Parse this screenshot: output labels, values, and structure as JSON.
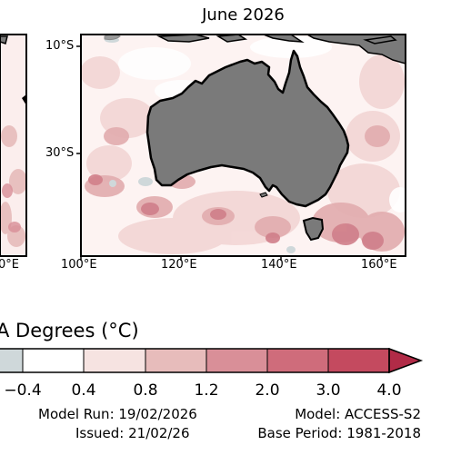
{
  "panel": {
    "title": "June 2026",
    "lat_labels": [
      "10°S",
      "30°S"
    ],
    "lon_labels": [
      "100°E",
      "120°E",
      "140°E",
      "160°E"
    ],
    "left_panel_partial_lon_label": "0°E"
  },
  "colorbar": {
    "title": "A Degrees (°C)",
    "tick_labels": [
      "−0.4",
      "0.4",
      "0.8",
      "1.2",
      "2.0",
      "3.0",
      "4.0"
    ],
    "colors": [
      "#cfd8da",
      "#ffffff",
      "#f6e3e1",
      "#e7bcbb",
      "#d98f98",
      "#cf6c7b",
      "#c44a5f",
      "#b12b47"
    ],
    "extend": "max"
  },
  "footer": {
    "model_run": "Model Run: 19/02/2026",
    "issued": "Issued: 21/02/26",
    "model": "Model: ACCESS-S2",
    "base_period": "Base Period: 1981-2018"
  },
  "colors": {
    "land": "#7a7a7a",
    "coast": "#000000",
    "sea_light": "#f6e3e1",
    "sea_mid": "#e7bcbb",
    "sea_warm": "#d98f98",
    "sea_cool": "#cfd8da"
  }
}
